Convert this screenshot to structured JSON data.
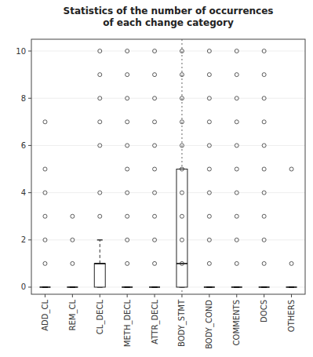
{
  "chart_data": {
    "type": "box",
    "title": "Statistics of the number of occurrences\nof each change category",
    "categories": [
      "ADD_CL",
      "REM_CL",
      "CL_DECL",
      "METH_DECL",
      "ATTR_DECL",
      "BODY_STMT",
      "BODY_COND",
      "COMMENTS",
      "DOCS",
      "OTHERS"
    ],
    "values": [
      {
        "q1": 0,
        "median": 0,
        "q3": 0,
        "whislo": 0,
        "whishi": 0,
        "fliers": [
          1,
          2,
          3,
          4,
          5,
          7
        ]
      },
      {
        "q1": 0,
        "median": 0,
        "q3": 0,
        "whislo": 0,
        "whishi": 0,
        "fliers": [
          1,
          2,
          3
        ]
      },
      {
        "q1": 0,
        "median": 1,
        "q3": 1,
        "whislo": 0,
        "whishi": 2,
        "fliers": [
          3,
          4,
          6,
          7,
          8,
          9,
          10
        ]
      },
      {
        "q1": 0,
        "median": 0,
        "q3": 0,
        "whislo": 0,
        "whishi": 0,
        "fliers": [
          1,
          2,
          3,
          4,
          5,
          6,
          7,
          8,
          9,
          10
        ]
      },
      {
        "q1": 0,
        "median": 0,
        "q3": 0,
        "whislo": 0,
        "whishi": 0,
        "fliers": [
          1,
          2,
          3,
          4,
          5,
          6,
          7,
          8,
          9,
          10
        ]
      },
      {
        "q1": 0,
        "median": 1,
        "q3": 5,
        "whislo": 0,
        "whishi": 5,
        "fliers": [
          1,
          2,
          3,
          4,
          5,
          6,
          7,
          8,
          9,
          10
        ]
      },
      {
        "q1": 0,
        "median": 0,
        "q3": 0,
        "whislo": 0,
        "whishi": 0,
        "fliers": [
          1,
          2,
          3,
          4,
          5,
          6,
          7,
          8,
          9,
          10
        ]
      },
      {
        "q1": 0,
        "median": 0,
        "q3": 0,
        "whislo": 0,
        "whishi": 0,
        "fliers": [
          1,
          2,
          3,
          4,
          5,
          6,
          7,
          8,
          9,
          10
        ]
      },
      {
        "q1": 0,
        "median": 0,
        "q3": 0,
        "whislo": 0,
        "whishi": 0,
        "fliers": [
          1,
          2,
          3,
          4,
          5,
          6,
          7,
          8,
          9,
          10
        ]
      },
      {
        "q1": 0,
        "median": 0,
        "q3": 0,
        "whislo": 0,
        "whishi": 0,
        "fliers": [
          1,
          5
        ]
      }
    ],
    "vline": "BODY_STMT",
    "ylim": [
      -0.3,
      10.5
    ],
    "yticks": [
      0,
      2,
      4,
      6,
      8,
      10
    ]
  }
}
